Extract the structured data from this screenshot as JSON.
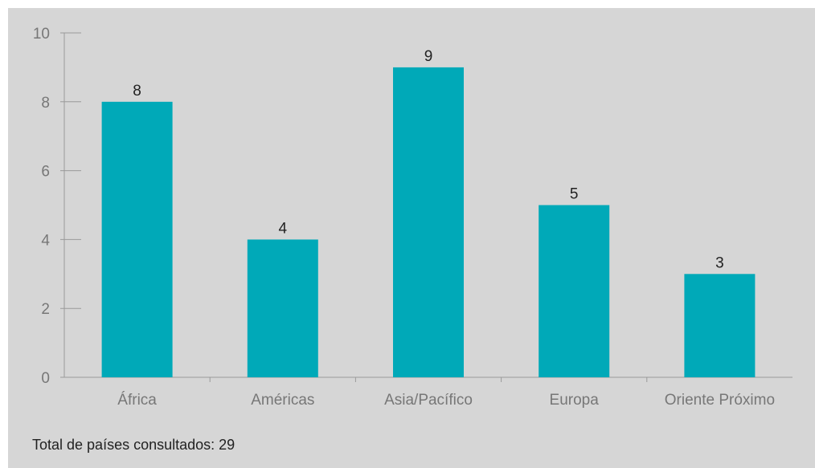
{
  "header": {
    "title": ""
  },
  "colors": {
    "background": "#d6d6d6",
    "bar": "#00a9b8",
    "axis": "#9a9a9a"
  },
  "chart_data": {
    "type": "bar",
    "categories": [
      "África",
      "Américas",
      "Asia/Pacífico",
      "Europa",
      "Oriente Próximo"
    ],
    "values": [
      8,
      4,
      9,
      5,
      3
    ],
    "ylim": [
      0,
      10
    ],
    "yticks": [
      "0",
      "2",
      "4",
      "6",
      "8",
      "10"
    ],
    "xlabel": "",
    "ylabel": "",
    "grid": false,
    "data_labels": true
  },
  "footnote": "Total de países consultados: 29"
}
